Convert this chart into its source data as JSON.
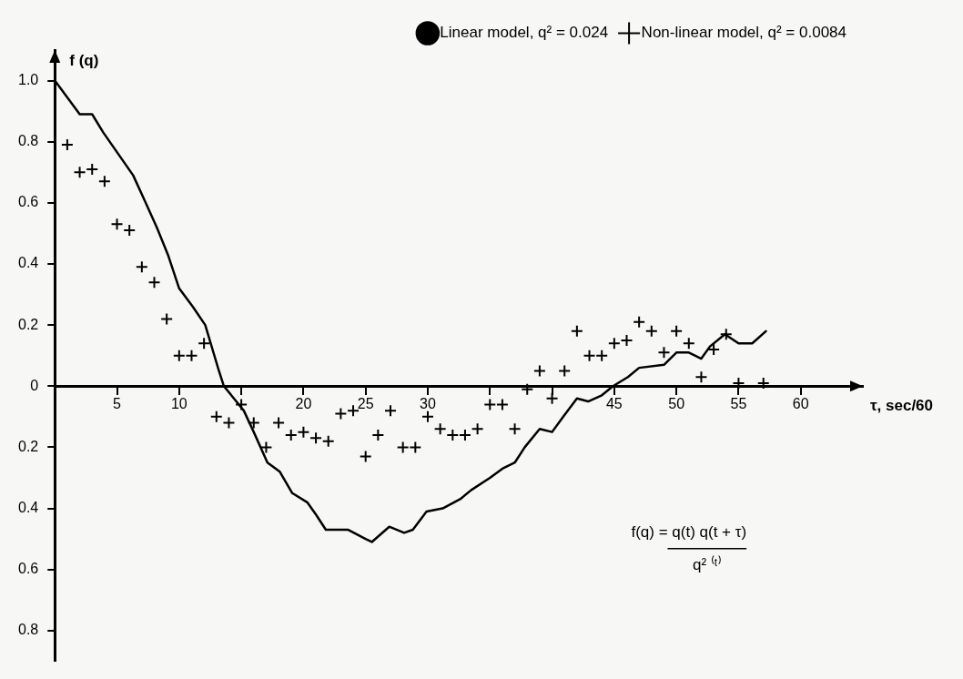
{
  "chart_data": {
    "type": "line",
    "xlabel": "τ, sec/60",
    "ylabel": "f (q)",
    "xlim": [
      0,
      65
    ],
    "ylim": [
      -0.9,
      1.1
    ],
    "xticks": [
      5,
      10,
      {
        "value": 15,
        "label": null
      },
      20,
      25,
      30,
      {
        "value": 35,
        "label": null
      },
      {
        "value": 40,
        "label": null
      },
      45,
      50,
      55,
      60
    ],
    "yticks": [
      {
        "value": -0.8,
        "label": "0.8"
      },
      {
        "value": -0.6,
        "label": "0.6"
      },
      {
        "value": -0.4,
        "label": "0.4"
      },
      {
        "value": -0.2,
        "label": "0.2"
      },
      0,
      0.2,
      0.4,
      0.6,
      0.8,
      {
        "value": 1.0,
        "label": "1.0"
      }
    ],
    "grid": false,
    "legend": "top right",
    "annotations": [
      "f(q) = q(t) q(t + τ)",
      "q² ⁽ᵗ⁾"
    ],
    "series": [
      {
        "name": "Linear model, q² = 0.024",
        "type": "line",
        "color": "#000000",
        "marker": "none",
        "line_style": "solid",
        "x": [
          0,
          2,
          3,
          3.9,
          5.1,
          6.3,
          7.2,
          8.2,
          9.1,
          10,
          11.1,
          12.1,
          13.2,
          13.6,
          15.2,
          16,
          17.1,
          18.1,
          19.1,
          20.3,
          21,
          21.8,
          23.6,
          25,
          25.5,
          26.9,
          28.1,
          28.8,
          29.9,
          31.2,
          32.6,
          33.5,
          35,
          36,
          37,
          37.8,
          39,
          40,
          40.9,
          42,
          42.9,
          44,
          44.9,
          46.1,
          47,
          49,
          50,
          51,
          52,
          52.7,
          53.9,
          55,
          56.1,
          57.2
        ],
        "values": [
          1.0,
          0.89,
          0.89,
          0.83,
          0.76,
          0.69,
          0.61,
          0.52,
          0.43,
          0.32,
          0.26,
          0.2,
          0.05,
          0,
          -0.08,
          -0.15,
          -0.25,
          -0.28,
          -0.35,
          -0.38,
          -0.42,
          -0.47,
          -0.47,
          -0.5,
          -0.51,
          -0.46,
          -0.48,
          -0.47,
          -0.41,
          -0.4,
          -0.37,
          -0.34,
          -0.3,
          -0.27,
          -0.25,
          -0.2,
          -0.14,
          -0.15,
          -0.1,
          -0.04,
          -0.05,
          -0.03,
          0,
          0.03,
          0.06,
          0.07,
          0.11,
          0.11,
          0.09,
          0.13,
          0.17,
          0.14,
          0.14,
          0.18
        ]
      },
      {
        "name": "Non-linear model, q² = 0.0084",
        "type": "scatter",
        "color": "#000000",
        "marker": "cross",
        "x": [
          1,
          2,
          3,
          4,
          5,
          6,
          7,
          8,
          9,
          10,
          11,
          12,
          13,
          14,
          15,
          16,
          17,
          18,
          19,
          20,
          21,
          22,
          23,
          24,
          25,
          26,
          27,
          28,
          29,
          30,
          31,
          32,
          33,
          34,
          35,
          36,
          37,
          38,
          39,
          40,
          41,
          42,
          43,
          44,
          45,
          46,
          47,
          48,
          49,
          50,
          51,
          52,
          53,
          54,
          55,
          57
        ],
        "values": [
          0.79,
          0.7,
          0.71,
          0.67,
          0.53,
          0.51,
          0.39,
          0.34,
          0.22,
          0.1,
          0.1,
          0.14,
          -0.1,
          -0.12,
          -0.06,
          -0.12,
          -0.2,
          -0.12,
          -0.16,
          -0.15,
          -0.17,
          -0.18,
          -0.09,
          -0.08,
          -0.23,
          -0.16,
          -0.08,
          -0.2,
          -0.2,
          -0.1,
          -0.14,
          -0.16,
          -0.16,
          -0.14,
          -0.06,
          -0.06,
          -0.14,
          -0.01,
          0.05,
          -0.04,
          0.05,
          0.18,
          0.1,
          0.1,
          0.14,
          0.15,
          0.21,
          0.18,
          0.11,
          0.18,
          0.14,
          0.03,
          0.12,
          0.17,
          0.01,
          0.01
        ]
      }
    ]
  }
}
